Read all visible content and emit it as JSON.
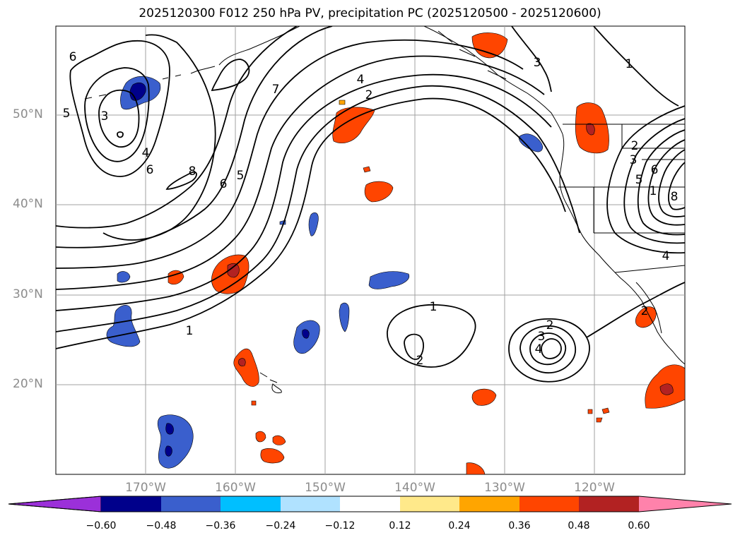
{
  "title": "2025120300 F012 250 hPa PV, precipitation PC (2025120500 - 2025120600)",
  "map": {
    "lat_labels": [
      "50°N",
      "40°N",
      "30°N",
      "20°N"
    ],
    "lon_labels": [
      "170°W",
      "160°W",
      "150°W",
      "140°W",
      "130°W",
      "120°W"
    ],
    "contour_labels": [
      "6",
      "5",
      "3",
      "4",
      "6",
      "8",
      "6",
      "5",
      "7",
      "4",
      "2",
      "3",
      "1",
      "1",
      "2",
      "1",
      "2",
      "3",
      "4",
      "2",
      "3",
      "5",
      "6",
      "1",
      "8",
      "4",
      "2"
    ],
    "colors": {
      "coast": "#000000",
      "grid": "#a0a0a0",
      "contour": "#000000"
    }
  },
  "colorbar": {
    "ticks": [
      "−0.60",
      "−0.48",
      "−0.36",
      "−0.24",
      "−0.12",
      "0.12",
      "0.24",
      "0.36",
      "0.48",
      "0.60"
    ],
    "colors": [
      "#9b30d9",
      "#00008b",
      "#3a5fcd",
      "#00bfff",
      "#b0e2ff",
      "#ffffff",
      "#ffe98a",
      "#ffa500",
      "#ff4500",
      "#b22222",
      "#ff82ab"
    ]
  }
}
